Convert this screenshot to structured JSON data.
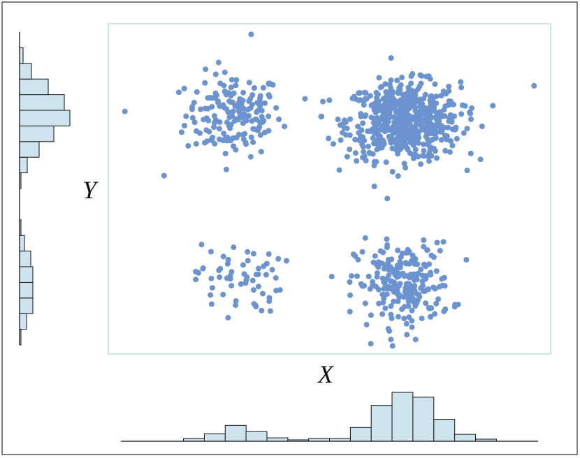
{
  "chart": {
    "xlabel": "X",
    "ylabel": "Y",
    "colors": {
      "points": "#6a93d0",
      "hist_fill": "#cde3ee",
      "plot_frame": "#cfe3ea"
    }
  },
  "chart_data": {
    "type": "scatter",
    "title": "",
    "xlabel": "X",
    "ylabel": "Y",
    "xlim": [
      0,
      100
    ],
    "ylim": [
      0,
      100
    ],
    "grid": false,
    "legend": "none",
    "clusters": [
      {
        "center": [
          28,
          73
        ],
        "spread": [
          5.5,
          6.5
        ],
        "n": 170
      },
      {
        "center": [
          67,
          71
        ],
        "spread": [
          6.5,
          6.0
        ],
        "n": 600
      },
      {
        "center": [
          29,
          22
        ],
        "spread": [
          5.0,
          5.5
        ],
        "n": 60
      },
      {
        "center": [
          67,
          20
        ],
        "spread": [
          5.5,
          6.5
        ],
        "n": 230
      }
    ],
    "outliers": [
      [
        32,
        98
      ],
      [
        3,
        74
      ],
      [
        12,
        54
      ],
      [
        97,
        82
      ]
    ],
    "marginal_x": {
      "type": "histogram",
      "bins": 20,
      "xlim": [
        0,
        100
      ],
      "counts": [
        0,
        0,
        0,
        4,
        11,
        23,
        14,
        5,
        2,
        4,
        4,
        20,
        52,
        71,
        64,
        32,
        10,
        3,
        0,
        0
      ]
    },
    "marginal_y": {
      "type": "histogram",
      "bins": 20,
      "ylim": [
        0,
        100
      ],
      "counts": [
        2,
        10,
        19,
        19,
        19,
        16,
        7,
        2,
        0,
        0,
        2,
        11,
        28,
        49,
        72,
        64,
        41,
        17,
        5,
        0
      ]
    }
  }
}
